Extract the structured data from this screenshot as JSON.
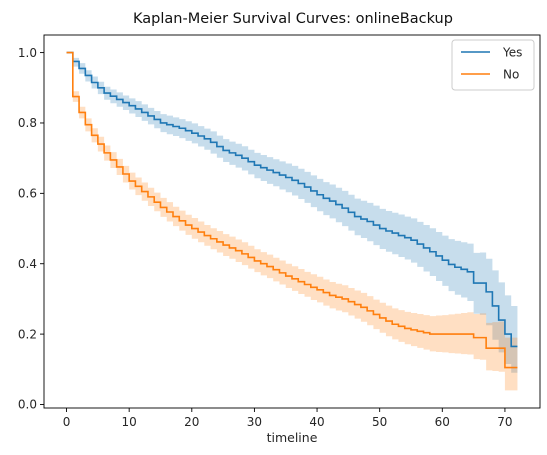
{
  "chart_data": {
    "type": "line",
    "title": "Kaplan-Meier Survival Curves: onlineBackup",
    "xlabel": "timeline",
    "ylabel": "",
    "xlim": [
      -3.6,
      75.6
    ],
    "ylim": [
      -0.01,
      1.05
    ],
    "xticks": [
      0,
      10,
      20,
      30,
      40,
      50,
      60,
      70
    ],
    "yticks": [
      0.0,
      0.2,
      0.4,
      0.6,
      0.8,
      1.0
    ],
    "grid": false,
    "legend": {
      "position": "top-right",
      "entries": [
        "Yes",
        "No"
      ]
    },
    "series": [
      {
        "name": "Yes",
        "color": "#1f77b4",
        "x": [
          0,
          1,
          2,
          3,
          4,
          5,
          6,
          7,
          8,
          9,
          10,
          11,
          12,
          13,
          14,
          15,
          16,
          17,
          18,
          19,
          20,
          21,
          22,
          23,
          24,
          25,
          26,
          27,
          28,
          29,
          30,
          31,
          32,
          33,
          34,
          35,
          36,
          37,
          38,
          39,
          40,
          41,
          42,
          43,
          44,
          45,
          46,
          47,
          48,
          49,
          50,
          51,
          52,
          53,
          54,
          55,
          56,
          57,
          58,
          59,
          60,
          61,
          62,
          63,
          64,
          65,
          66,
          67,
          68,
          69,
          70,
          71,
          72
        ],
        "y": [
          1.0,
          0.975,
          0.955,
          0.935,
          0.915,
          0.9,
          0.885,
          0.876,
          0.867,
          0.858,
          0.849,
          0.84,
          0.83,
          0.82,
          0.81,
          0.8,
          0.795,
          0.79,
          0.785,
          0.778,
          0.771,
          0.763,
          0.755,
          0.745,
          0.733,
          0.722,
          0.715,
          0.708,
          0.7,
          0.69,
          0.68,
          0.673,
          0.666,
          0.659,
          0.652,
          0.645,
          0.637,
          0.628,
          0.618,
          0.607,
          0.596,
          0.586,
          0.578,
          0.568,
          0.558,
          0.546,
          0.534,
          0.527,
          0.52,
          0.51,
          0.5,
          0.493,
          0.487,
          0.48,
          0.474,
          0.467,
          0.456,
          0.445,
          0.434,
          0.422,
          0.41,
          0.398,
          0.39,
          0.384,
          0.377,
          0.345,
          0.345,
          0.32,
          0.28,
          0.24,
          0.2,
          0.165,
          0.165
        ],
        "ci_low": [
          1.0,
          0.96,
          0.94,
          0.918,
          0.898,
          0.882,
          0.866,
          0.856,
          0.846,
          0.837,
          0.827,
          0.817,
          0.806,
          0.796,
          0.785,
          0.774,
          0.768,
          0.763,
          0.757,
          0.749,
          0.742,
          0.733,
          0.724,
          0.713,
          0.701,
          0.689,
          0.681,
          0.673,
          0.665,
          0.654,
          0.643,
          0.635,
          0.627,
          0.62,
          0.611,
          0.603,
          0.594,
          0.584,
          0.573,
          0.561,
          0.549,
          0.538,
          0.529,
          0.518,
          0.507,
          0.494,
          0.481,
          0.473,
          0.464,
          0.453,
          0.442,
          0.434,
          0.427,
          0.419,
          0.412,
          0.403,
          0.391,
          0.378,
          0.365,
          0.351,
          0.337,
          0.322,
          0.312,
          0.304,
          0.294,
          0.258,
          0.255,
          0.225,
          0.184,
          0.148,
          0.115,
          0.09,
          0.09
        ],
        "ci_high": [
          1.0,
          0.985,
          0.97,
          0.95,
          0.932,
          0.917,
          0.903,
          0.895,
          0.887,
          0.878,
          0.87,
          0.862,
          0.853,
          0.843,
          0.834,
          0.825,
          0.821,
          0.816,
          0.811,
          0.805,
          0.799,
          0.791,
          0.784,
          0.776,
          0.764,
          0.754,
          0.747,
          0.741,
          0.734,
          0.724,
          0.715,
          0.709,
          0.703,
          0.697,
          0.691,
          0.685,
          0.678,
          0.67,
          0.661,
          0.651,
          0.641,
          0.632,
          0.625,
          0.616,
          0.607,
          0.596,
          0.585,
          0.579,
          0.573,
          0.565,
          0.556,
          0.55,
          0.545,
          0.54,
          0.534,
          0.529,
          0.519,
          0.51,
          0.501,
          0.49,
          0.48,
          0.47,
          0.465,
          0.461,
          0.457,
          0.431,
          0.432,
          0.414,
          0.381,
          0.347,
          0.31,
          0.28,
          0.28
        ]
      },
      {
        "name": "No",
        "color": "#ff7f0e",
        "x": [
          0,
          1,
          2,
          3,
          4,
          5,
          6,
          7,
          8,
          9,
          10,
          11,
          12,
          13,
          14,
          15,
          16,
          17,
          18,
          19,
          20,
          21,
          22,
          23,
          24,
          25,
          26,
          27,
          28,
          29,
          30,
          31,
          32,
          33,
          34,
          35,
          36,
          37,
          38,
          39,
          40,
          41,
          42,
          43,
          44,
          45,
          46,
          47,
          48,
          49,
          50,
          51,
          52,
          53,
          54,
          55,
          56,
          57,
          58,
          59,
          60,
          61,
          62,
          63,
          64,
          65,
          66,
          67,
          68,
          69,
          70,
          71,
          72
        ],
        "y": [
          1.0,
          0.875,
          0.83,
          0.795,
          0.765,
          0.74,
          0.715,
          0.695,
          0.675,
          0.655,
          0.635,
          0.62,
          0.605,
          0.59,
          0.575,
          0.56,
          0.547,
          0.534,
          0.522,
          0.51,
          0.5,
          0.49,
          0.48,
          0.471,
          0.462,
          0.453,
          0.445,
          0.437,
          0.428,
          0.418,
          0.408,
          0.4,
          0.392,
          0.383,
          0.374,
          0.365,
          0.357,
          0.349,
          0.341,
          0.333,
          0.326,
          0.318,
          0.31,
          0.305,
          0.3,
          0.292,
          0.284,
          0.276,
          0.266,
          0.256,
          0.246,
          0.237,
          0.228,
          0.222,
          0.216,
          0.212,
          0.208,
          0.204,
          0.2,
          0.2,
          0.2,
          0.2,
          0.2,
          0.2,
          0.2,
          0.19,
          0.19,
          0.16,
          0.16,
          0.16,
          0.105,
          0.105,
          0.105
        ],
        "ci_low": [
          1.0,
          0.86,
          0.813,
          0.776,
          0.745,
          0.719,
          0.693,
          0.672,
          0.652,
          0.631,
          0.611,
          0.595,
          0.579,
          0.564,
          0.549,
          0.533,
          0.52,
          0.507,
          0.494,
          0.482,
          0.471,
          0.461,
          0.451,
          0.441,
          0.432,
          0.422,
          0.414,
          0.405,
          0.396,
          0.386,
          0.376,
          0.367,
          0.359,
          0.35,
          0.341,
          0.331,
          0.323,
          0.314,
          0.306,
          0.297,
          0.29,
          0.281,
          0.273,
          0.267,
          0.262,
          0.253,
          0.244,
          0.235,
          0.225,
          0.214,
          0.204,
          0.194,
          0.185,
          0.178,
          0.171,
          0.166,
          0.161,
          0.156,
          0.151,
          0.149,
          0.148,
          0.146,
          0.145,
          0.143,
          0.142,
          0.129,
          0.127,
          0.097,
          0.095,
          0.093,
          0.04,
          0.04,
          0.04
        ],
        "ci_high": [
          1.0,
          0.89,
          0.846,
          0.813,
          0.785,
          0.761,
          0.736,
          0.717,
          0.698,
          0.678,
          0.659,
          0.645,
          0.631,
          0.616,
          0.602,
          0.587,
          0.575,
          0.562,
          0.551,
          0.539,
          0.53,
          0.52,
          0.51,
          0.501,
          0.493,
          0.484,
          0.477,
          0.469,
          0.461,
          0.451,
          0.441,
          0.433,
          0.426,
          0.417,
          0.409,
          0.4,
          0.393,
          0.385,
          0.377,
          0.37,
          0.363,
          0.355,
          0.348,
          0.343,
          0.339,
          0.331,
          0.324,
          0.317,
          0.308,
          0.298,
          0.289,
          0.281,
          0.273,
          0.268,
          0.263,
          0.26,
          0.257,
          0.254,
          0.251,
          0.253,
          0.254,
          0.256,
          0.258,
          0.26,
          0.262,
          0.257,
          0.259,
          0.232,
          0.234,
          0.236,
          0.19,
          0.19,
          0.19
        ]
      }
    ]
  }
}
